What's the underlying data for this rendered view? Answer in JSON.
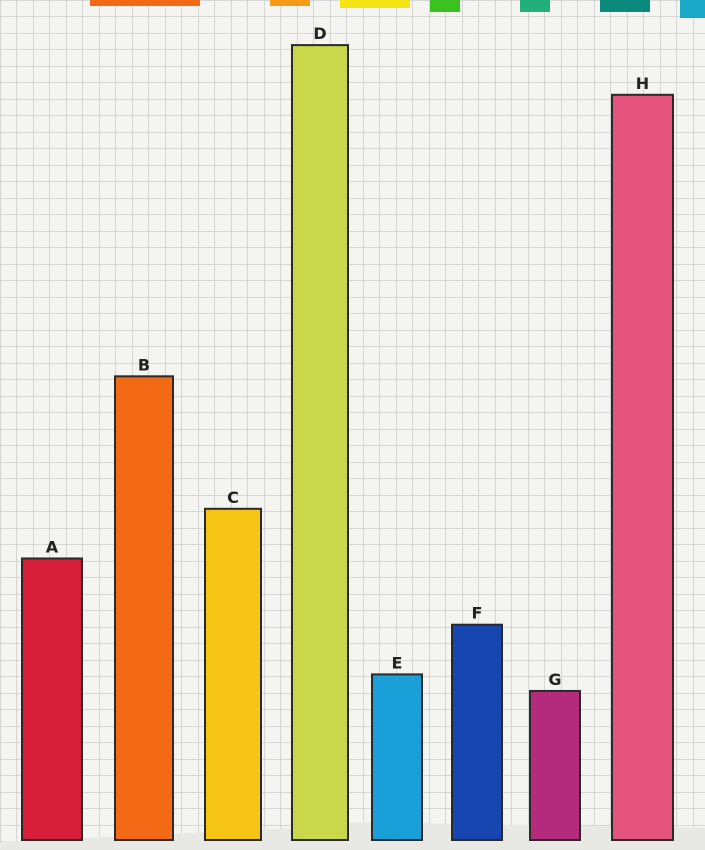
{
  "chart_data": {
    "type": "bar",
    "categories": [
      "A",
      "B",
      "C",
      "D",
      "E",
      "F",
      "G",
      "H"
    ],
    "values": [
      17,
      28,
      20,
      48,
      10,
      13,
      9,
      45
    ],
    "colors": [
      "#d81f3a",
      "#f26a16",
      "#f5c414",
      "#c8d84a",
      "#1a9fd8",
      "#1846b0",
      "#b42a7c",
      "#e4537c"
    ],
    "ylim": [
      0,
      50
    ]
  }
}
